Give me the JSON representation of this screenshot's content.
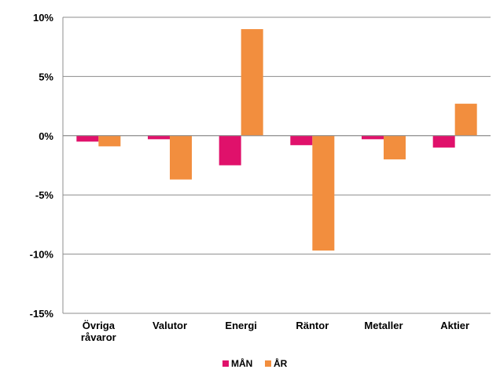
{
  "chart_data": {
    "type": "bar",
    "categories": [
      [
        "Övriga",
        "råvaror"
      ],
      [
        "Valutor"
      ],
      [
        "Energi"
      ],
      [
        "Räntor"
      ],
      [
        "Metaller"
      ],
      [
        "Aktier"
      ]
    ],
    "series": [
      {
        "name": "MÅN",
        "color": "#e0116b",
        "values": [
          -0.5,
          -0.3,
          -2.5,
          -0.8,
          -0.3,
          -1.0
        ]
      },
      {
        "name": "ÅR",
        "color": "#f28e3e",
        "values": [
          -0.9,
          -3.7,
          9.0,
          -9.7,
          -2.0,
          2.7
        ]
      }
    ],
    "y_ticks": [
      {
        "value": 10,
        "label": "10%"
      },
      {
        "value": 5,
        "label": "5%"
      },
      {
        "value": 0,
        "label": "0%"
      },
      {
        "value": -5,
        "label": "-5%"
      },
      {
        "value": -10,
        "label": "-10%"
      },
      {
        "value": -15,
        "label": "-15%"
      }
    ],
    "ylim": [
      -15,
      10
    ],
    "grid": true,
    "legend_position": "bottom-center",
    "title": "",
    "xlabel": "",
    "ylabel": ""
  }
}
